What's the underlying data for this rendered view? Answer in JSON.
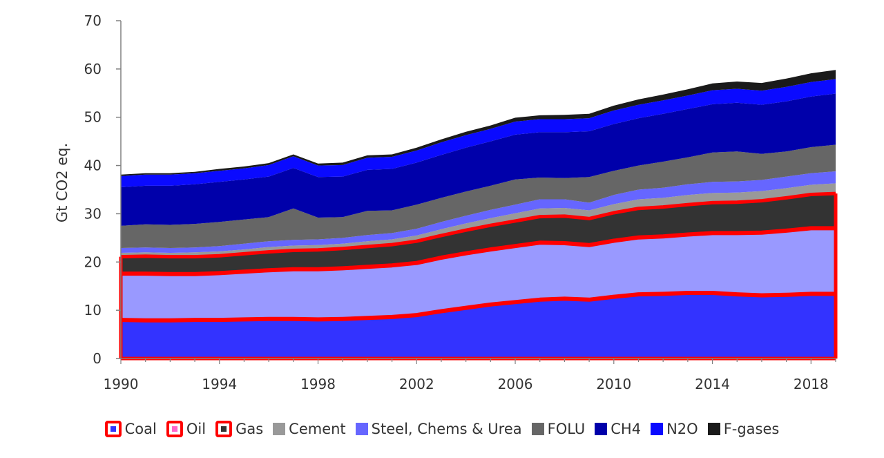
{
  "chart_data": {
    "type": "area",
    "stacked": true,
    "title": "",
    "xlabel": "",
    "ylabel": "Gt CO2 eq.",
    "xlim": [
      1990,
      2019
    ],
    "ylim": [
      0,
      70
    ],
    "yticks": [
      0,
      10,
      20,
      30,
      40,
      50,
      60,
      70
    ],
    "xticks": [
      1990,
      1994,
      1998,
      2002,
      2006,
      2010,
      2014,
      2018
    ],
    "x": [
      1990,
      1991,
      1992,
      1993,
      1994,
      1995,
      1996,
      1997,
      1998,
      1999,
      2000,
      2001,
      2002,
      2003,
      2004,
      2005,
      2006,
      2007,
      2008,
      2009,
      2010,
      2011,
      2012,
      2013,
      2014,
      2015,
      2016,
      2017,
      2018,
      2019
    ],
    "highlight": {
      "note": "red outline around fossil fuel (Coal, Oil, Gas) layers",
      "series": [
        "Coal",
        "Oil",
        "Gas"
      ],
      "color": "#ff0000"
    },
    "legend_position": "bottom",
    "series": [
      {
        "name": "Coal",
        "color": "#3333ff",
        "values": [
          8.0,
          7.9,
          7.9,
          8.0,
          8.0,
          8.1,
          8.2,
          8.2,
          8.1,
          8.2,
          8.4,
          8.6,
          9.0,
          9.8,
          10.5,
          11.2,
          11.7,
          12.2,
          12.4,
          12.2,
          12.8,
          13.3,
          13.4,
          13.6,
          13.6,
          13.3,
          13.1,
          13.2,
          13.4,
          13.4
        ],
        "legend_framed": true,
        "legend_inner_color": "#3333ff"
      },
      {
        "name": "Oil",
        "color": "#9999ff",
        "values": [
          9.6,
          9.7,
          9.6,
          9.5,
          9.7,
          9.9,
          10.1,
          10.3,
          10.4,
          10.5,
          10.6,
          10.7,
          10.8,
          11.1,
          11.3,
          11.4,
          11.6,
          11.8,
          11.5,
          11.3,
          11.6,
          11.8,
          11.9,
          12.1,
          12.4,
          12.7,
          13.0,
          13.3,
          13.6,
          13.6
        ],
        "legend_framed": true,
        "legend_inner_color": "#ff66cc"
      },
      {
        "name": "Gas",
        "color": "#333333",
        "values": [
          3.5,
          3.6,
          3.6,
          3.6,
          3.6,
          3.7,
          3.8,
          3.9,
          4.0,
          4.1,
          4.2,
          4.3,
          4.5,
          4.6,
          4.8,
          5.0,
          5.2,
          5.4,
          5.6,
          5.5,
          5.8,
          6.0,
          6.1,
          6.2,
          6.3,
          6.4,
          6.6,
          6.8,
          7.0,
          7.2
        ],
        "legend_framed": true,
        "legend_inner_color": "#333333"
      },
      {
        "name": "Cement",
        "color": "#999999",
        "values": [
          0.8,
          0.8,
          0.8,
          0.9,
          0.9,
          0.9,
          1.0,
          1.0,
          1.0,
          1.0,
          1.1,
          1.1,
          1.2,
          1.3,
          1.4,
          1.5,
          1.6,
          1.7,
          1.7,
          1.7,
          1.8,
          1.9,
          1.9,
          2.0,
          2.0,
          2.0,
          2.0,
          2.0,
          2.0,
          2.1
        ],
        "legend_framed": false
      },
      {
        "name": "Steel, Chems & Urea",
        "color": "#6666ff",
        "values": [
          1.0,
          1.0,
          1.0,
          1.0,
          1.1,
          1.2,
          1.2,
          1.2,
          1.2,
          1.2,
          1.3,
          1.3,
          1.4,
          1.5,
          1.6,
          1.7,
          1.8,
          1.9,
          1.8,
          1.6,
          1.9,
          2.0,
          2.1,
          2.2,
          2.3,
          2.3,
          2.3,
          2.4,
          2.4,
          2.5
        ],
        "legend_framed": false
      },
      {
        "name": "FOLU",
        "color": "#666666",
        "values": [
          4.6,
          4.8,
          4.8,
          4.9,
          5.0,
          5.0,
          5.0,
          6.5,
          4.5,
          4.3,
          5.0,
          4.7,
          5.0,
          5.0,
          5.0,
          5.0,
          5.2,
          4.5,
          4.4,
          5.3,
          5.0,
          5.0,
          5.4,
          5.6,
          6.1,
          6.2,
          5.4,
          5.2,
          5.4,
          5.5
        ],
        "legend_framed": false
      },
      {
        "name": "CH4",
        "color": "#0000aa",
        "values": [
          8.0,
          8.0,
          8.1,
          8.2,
          8.3,
          8.3,
          8.4,
          8.4,
          8.4,
          8.4,
          8.5,
          8.6,
          8.7,
          8.9,
          9.1,
          9.2,
          9.3,
          9.4,
          9.5,
          9.5,
          9.7,
          9.8,
          9.9,
          10.0,
          10.0,
          10.1,
          10.2,
          10.4,
          10.5,
          10.6
        ],
        "legend_framed": false
      },
      {
        "name": "N2O",
        "color": "#0a0aff",
        "values": [
          2.3,
          2.3,
          2.3,
          2.3,
          2.3,
          2.3,
          2.4,
          2.4,
          2.4,
          2.4,
          2.5,
          2.5,
          2.5,
          2.6,
          2.6,
          2.6,
          2.7,
          2.7,
          2.7,
          2.7,
          2.8,
          2.8,
          2.8,
          2.8,
          2.9,
          2.9,
          2.9,
          3.0,
          3.0,
          3.0
        ],
        "legend_framed": false
      },
      {
        "name": "F-gases",
        "color": "#1a1a1a",
        "values": [
          0.3,
          0.3,
          0.3,
          0.3,
          0.4,
          0.4,
          0.4,
          0.4,
          0.4,
          0.5,
          0.5,
          0.5,
          0.6,
          0.6,
          0.7,
          0.7,
          0.8,
          0.8,
          0.9,
          0.9,
          1.0,
          1.1,
          1.2,
          1.3,
          1.4,
          1.5,
          1.6,
          1.7,
          1.8,
          1.9
        ],
        "legend_framed": false
      }
    ]
  }
}
